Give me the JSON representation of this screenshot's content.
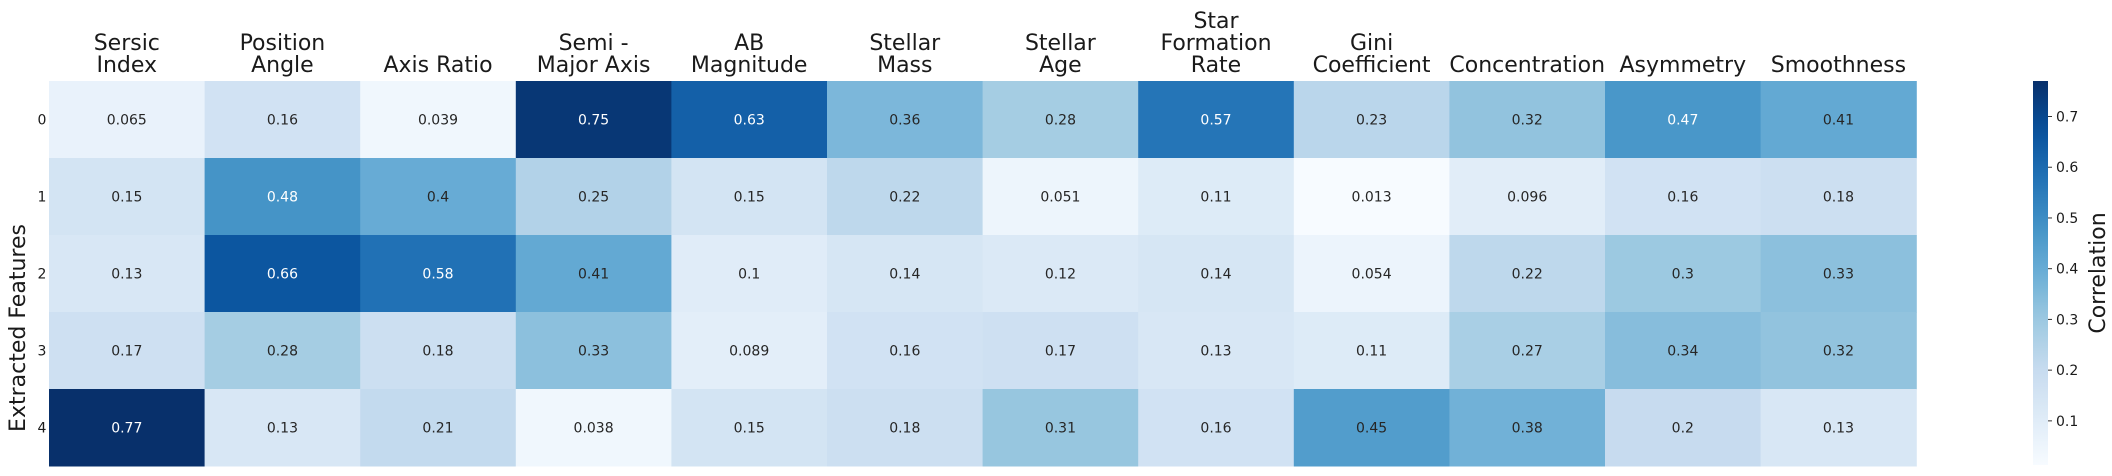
{
  "chart_data": {
    "type": "heatmap",
    "title": "",
    "ylabel": "Extracted Features",
    "colorbar_label": "Correlation",
    "colormap": "Blues",
    "vmin": 0.013,
    "vmax": 0.77,
    "colorbar_ticks": [
      0.1,
      0.2,
      0.3,
      0.4,
      0.5,
      0.6,
      0.7
    ],
    "rows": [
      "0",
      "1",
      "2",
      "3",
      "4"
    ],
    "columns": [
      [
        "Sersic",
        "Index"
      ],
      [
        "Position",
        "Angle"
      ],
      [
        "Axis Ratio"
      ],
      [
        "Semi -",
        "Major Axis"
      ],
      [
        "AB",
        "Magnitude"
      ],
      [
        "Stellar",
        "Mass"
      ],
      [
        "Stellar",
        "Age"
      ],
      [
        "Star",
        "Formation",
        "Rate"
      ],
      [
        "Gini",
        "Coefficient"
      ],
      [
        "Concentration"
      ],
      [
        "Asymmetry"
      ],
      [
        "Smoothness"
      ]
    ],
    "values": [
      [
        0.065,
        0.16,
        0.039,
        0.75,
        0.63,
        0.36,
        0.28,
        0.57,
        0.23,
        0.32,
        0.47,
        0.41
      ],
      [
        0.15,
        0.48,
        0.4,
        0.25,
        0.15,
        0.22,
        0.051,
        0.11,
        0.013,
        0.096,
        0.16,
        0.18
      ],
      [
        0.13,
        0.66,
        0.58,
        0.41,
        0.1,
        0.14,
        0.12,
        0.14,
        0.054,
        0.22,
        0.3,
        0.33
      ],
      [
        0.17,
        0.28,
        0.18,
        0.33,
        0.089,
        0.16,
        0.17,
        0.13,
        0.11,
        0.27,
        0.34,
        0.32
      ],
      [
        0.77,
        0.13,
        0.21,
        0.038,
        0.15,
        0.18,
        0.31,
        0.16,
        0.45,
        0.38,
        0.2,
        0.13
      ]
    ]
  }
}
